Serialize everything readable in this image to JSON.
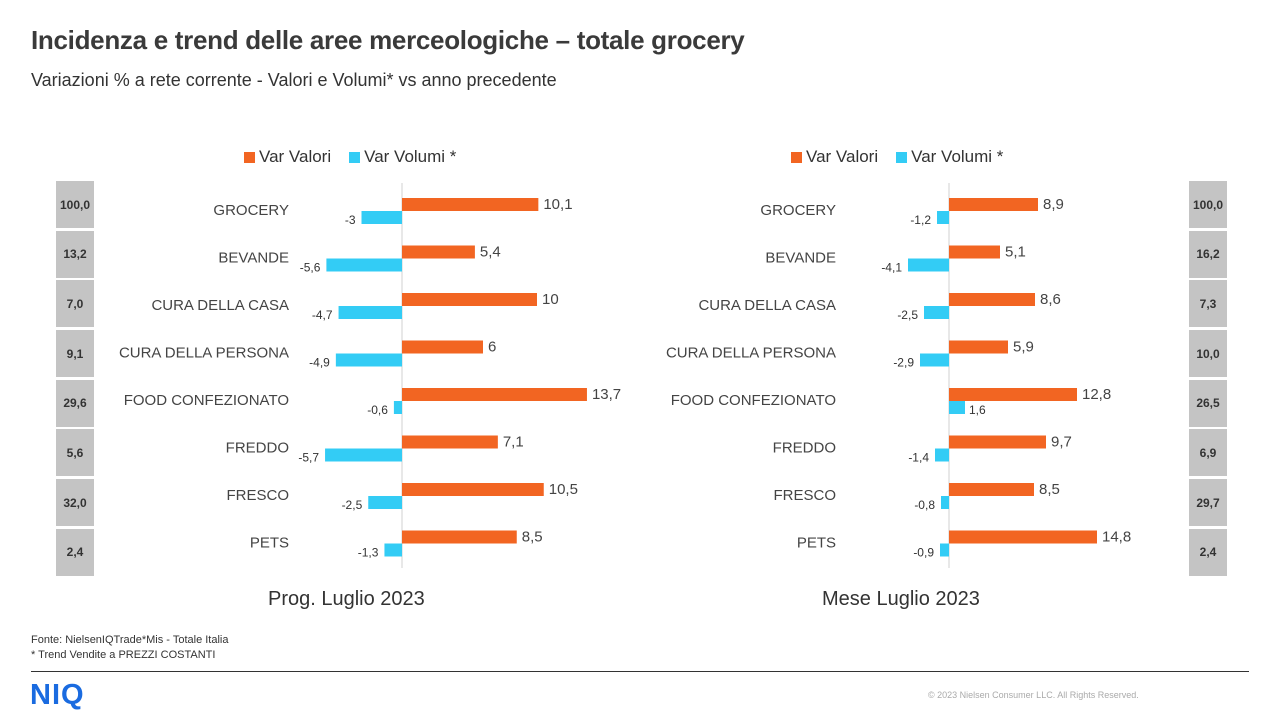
{
  "title": "Incidenza e trend delle aree merceologiche – totale grocery",
  "subtitle": "Variazioni  % a rete corrente - Valori e Volumi*  vs anno precedente",
  "legend": {
    "valori": "Var Valori",
    "volumi": "Var Volumi *"
  },
  "colors": {
    "valori": "#f26522",
    "volumi": "#33ccf5",
    "grey": "#c4c4c4"
  },
  "chart_data": [
    {
      "type": "bar",
      "orientation": "horizontal",
      "period": "Prog. Luglio 2023",
      "categories": [
        "GROCERY",
        "BEVANDE",
        "CURA DELLA CASA",
        "CURA DELLA PERSONA",
        "FOOD CONFEZIONATO",
        "FREDDO",
        "FRESCO",
        "PETS"
      ],
      "incidenza": [
        "100,0",
        "13,2",
        "7,0",
        "9,1",
        "29,6",
        "5,6",
        "32,0",
        "2,4"
      ],
      "series": [
        {
          "name": "Var Valori",
          "values": [
            10.1,
            5.4,
            10,
            6,
            13.7,
            7.1,
            10.5,
            8.5
          ],
          "labels": [
            "10,1",
            "5,4",
            "10",
            "6",
            "13,7",
            "7,1",
            "10,5",
            "8,5"
          ]
        },
        {
          "name": "Var Volumi *",
          "values": [
            -3,
            -5.6,
            -4.7,
            -4.9,
            -0.6,
            -5.7,
            -2.5,
            -1.3
          ],
          "labels": [
            "-3",
            "-5,6",
            "-4,7",
            "-4,9",
            "-0,6",
            "-5,7",
            "-2,5",
            "-1,3"
          ]
        }
      ]
    },
    {
      "type": "bar",
      "orientation": "horizontal",
      "period": "Mese Luglio 2023",
      "categories": [
        "GROCERY",
        "BEVANDE",
        "CURA DELLA CASA",
        "CURA DELLA PERSONA",
        "FOOD CONFEZIONATO",
        "FREDDO",
        "FRESCO",
        "PETS"
      ],
      "incidenza": [
        "100,0",
        "16,2",
        "7,3",
        "10,0",
        "26,5",
        "6,9",
        "29,7",
        "2,4"
      ],
      "series": [
        {
          "name": "Var Valori",
          "values": [
            8.9,
            5.1,
            8.6,
            5.9,
            12.8,
            9.7,
            8.5,
            14.8
          ],
          "labels": [
            "8,9",
            "5,1",
            "8,6",
            "5,9",
            "12,8",
            "9,7",
            "8,5",
            "14,8"
          ]
        },
        {
          "name": "Var Volumi *",
          "values": [
            -1.2,
            -4.1,
            -2.5,
            -2.9,
            1.6,
            -1.4,
            -0.8,
            -0.9
          ],
          "labels": [
            "-1,2",
            "-4,1",
            "-2,5",
            "-2,9",
            "1,6",
            "-1,4",
            "-0,8",
            "-0,9"
          ]
        }
      ]
    }
  ],
  "source": [
    "Fonte: NielsenIQTrade*Mis  - Totale Italia",
    "* Trend Vendite a PREZZI COSTANTI"
  ],
  "logo": "NIQ",
  "copyright": "© 2023 Nielsen Consumer LLC. All Rights Reserved."
}
